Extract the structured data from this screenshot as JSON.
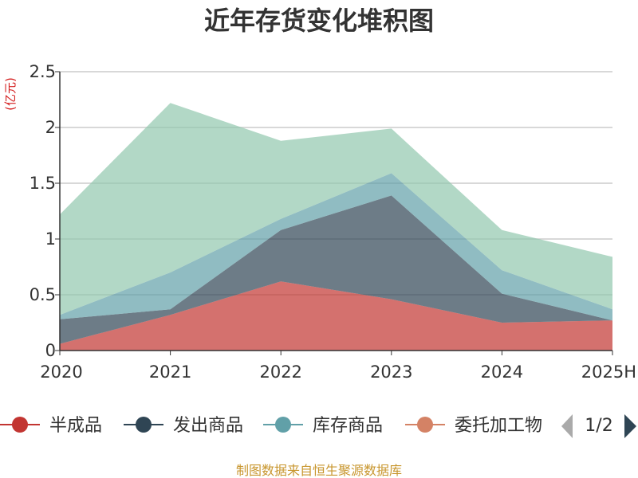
{
  "chart_data": {
    "type": "area",
    "stacked": true,
    "title": "近年存货变化堆积图",
    "unit_label": "(亿元)",
    "categories": [
      "2020",
      "2021",
      "2022",
      "2023",
      "2024",
      "2025H"
    ],
    "ylim": [
      0,
      2.5
    ],
    "y_ticks": [
      "0",
      "0.5",
      "1",
      "1.5",
      "2",
      "2.5"
    ],
    "grid": true,
    "legend_position": "bottom",
    "series": [
      {
        "name": "半成品",
        "color": "#c23531",
        "values": [
          0.06,
          0.32,
          0.62,
          0.46,
          0.25,
          0.27
        ]
      },
      {
        "name": "发出商品",
        "color": "#2f4554",
        "values": [
          0.22,
          0.05,
          0.46,
          0.93,
          0.26,
          0.0
        ]
      },
      {
        "name": "库存商品",
        "color": "#61a0a8",
        "values": [
          0.04,
          0.33,
          0.1,
          0.2,
          0.21,
          0.1
        ]
      },
      {
        "name": "委托加工物",
        "color": "#d48265",
        "values": [
          0.0,
          0.0,
          0.0,
          0.0,
          0.0,
          0.0
        ]
      },
      {
        "name": "",
        "color": "#91c7ae",
        "values": [
          0.9,
          1.52,
          0.7,
          0.4,
          0.36,
          0.47
        ]
      }
    ],
    "legend_pager": "1/2",
    "source": "制图数据来自恒生聚源数据库"
  }
}
